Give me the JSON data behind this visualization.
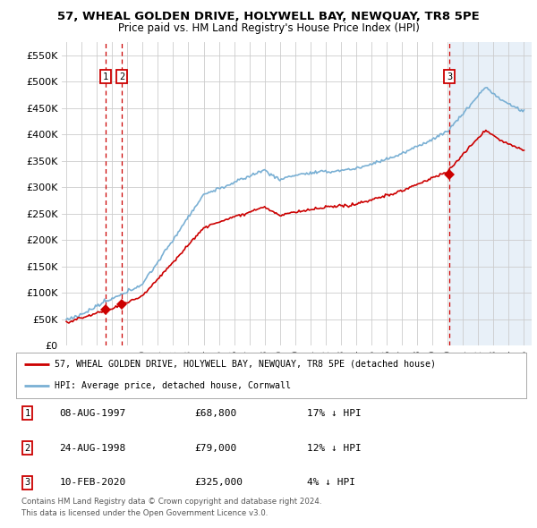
{
  "title": "57, WHEAL GOLDEN DRIVE, HOLYWELL BAY, NEWQUAY, TR8 5PE",
  "subtitle": "Price paid vs. HM Land Registry's House Price Index (HPI)",
  "ylim": [
    0,
    575000
  ],
  "yticks": [
    0,
    50000,
    100000,
    150000,
    200000,
    250000,
    300000,
    350000,
    400000,
    450000,
    500000,
    550000
  ],
  "ytick_labels": [
    "£0",
    "£50K",
    "£100K",
    "£150K",
    "£200K",
    "£250K",
    "£300K",
    "£350K",
    "£400K",
    "£450K",
    "£500K",
    "£550K"
  ],
  "sale_dates_num": [
    1997.58,
    1998.64,
    2020.1
  ],
  "sale_prices": [
    68800,
    79000,
    325000
  ],
  "sale_labels": [
    "1",
    "2",
    "3"
  ],
  "vline_dates": [
    1997.58,
    1998.64,
    2020.1
  ],
  "transaction_rows": [
    {
      "label": "1",
      "date": "08-AUG-1997",
      "price": "£68,800",
      "info": "17% ↓ HPI"
    },
    {
      "label": "2",
      "date": "24-AUG-1998",
      "price": "£79,000",
      "info": "12% ↓ HPI"
    },
    {
      "label": "3",
      "date": "10-FEB-2020",
      "price": "£325,000",
      "info": "4% ↓ HPI"
    }
  ],
  "legend_entries": [
    {
      "label": "57, WHEAL GOLDEN DRIVE, HOLYWELL BAY, NEWQUAY, TR8 5PE (detached house)",
      "color": "#cc0000",
      "lw": 2
    },
    {
      "label": "HPI: Average price, detached house, Cornwall",
      "color": "#7ab0d4",
      "lw": 2
    }
  ],
  "footer": [
    "Contains HM Land Registry data © Crown copyright and database right 2024.",
    "This data is licensed under the Open Government Licence v3.0."
  ],
  "bg_color": "#ffffff",
  "plot_bg_color": "#ffffff",
  "shade_color": "#e8f0f8",
  "grid_color": "#cccccc",
  "hpi_color": "#7ab0d4",
  "price_color": "#cc0000",
  "xlim_left": 1994.7,
  "xlim_right": 2025.5,
  "shade_start": 2020.1
}
